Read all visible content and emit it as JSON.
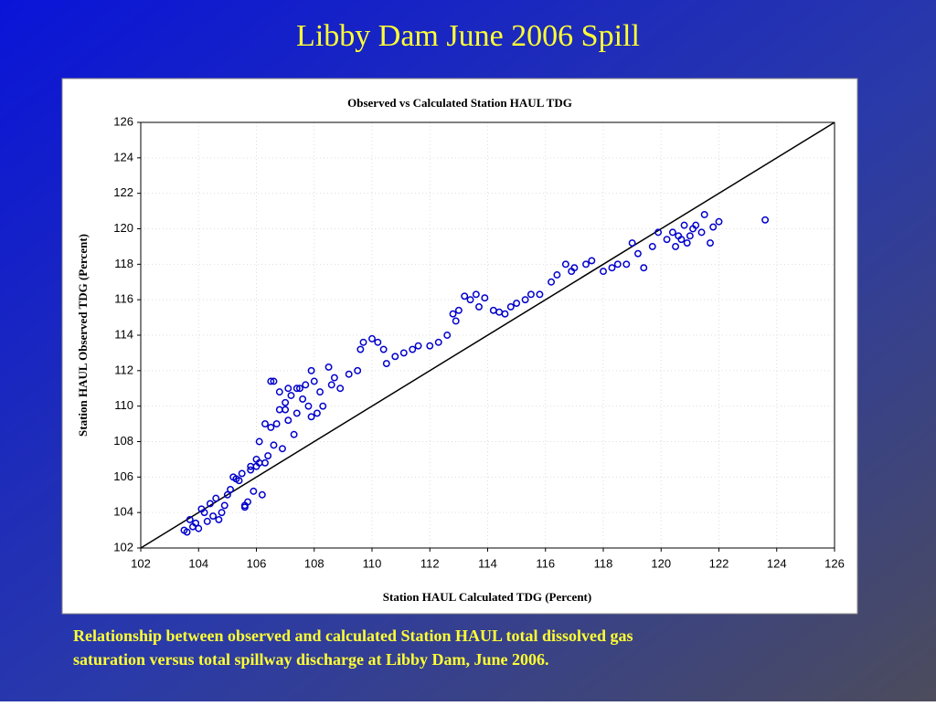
{
  "slide": {
    "title": "Libby Dam June 2006 Spill",
    "caption": [
      "Relationship between observed and calculated Station HAUL total dissolved gas",
      "saturation versus total spillway discharge at Libby Dam, June 2006."
    ]
  },
  "chart_data": {
    "type": "scatter",
    "title": "Observed vs Calculated Station HAUL TDG",
    "xlabel": "Station HAUL Calculated TDG (Percent)",
    "ylabel": "Station HAUL Observed TDG (Percent)",
    "xlim": [
      102,
      126
    ],
    "ylim": [
      102,
      126
    ],
    "xticks": [
      102,
      104,
      106,
      108,
      110,
      112,
      114,
      116,
      118,
      120,
      122,
      124,
      126
    ],
    "yticks": [
      102,
      104,
      106,
      108,
      110,
      112,
      114,
      116,
      118,
      120,
      122,
      124,
      126
    ],
    "grid": true,
    "series": [
      {
        "color": "#0000cc",
        "x": [
          103.5,
          103.6,
          103.8,
          103.9,
          104.0,
          104.1,
          104.3,
          104.4,
          104.5,
          104.6,
          104.7,
          104.8,
          104.9,
          105.0,
          105.1,
          105.2,
          105.4,
          105.5,
          105.6,
          105.7,
          105.8,
          105.9,
          106.0,
          106.1,
          106.2,
          106.3,
          106.4,
          106.5,
          106.6,
          106.7,
          106.8,
          106.9,
          107.0,
          107.1,
          107.2,
          107.3,
          107.4,
          107.5,
          107.6,
          107.7,
          107.8,
          107.9,
          108.0,
          108.1,
          108.3,
          108.5,
          108.7,
          108.9,
          109.2,
          109.5,
          109.6,
          109.7,
          110.0,
          110.2,
          110.4,
          110.5,
          110.8,
          111.1,
          111.4,
          111.6,
          112.0,
          112.3,
          112.6,
          112.8,
          112.9,
          113.0,
          113.2,
          113.4,
          113.6,
          113.7,
          113.9,
          114.2,
          114.4,
          114.6,
          114.8,
          115.0,
          115.3,
          115.5,
          115.8,
          116.2,
          116.4,
          116.7,
          117.0,
          117.4,
          117.6,
          118.0,
          118.3,
          118.5,
          118.8,
          119.0,
          119.2,
          119.4,
          119.7,
          119.9,
          120.2,
          120.4,
          120.5,
          120.6,
          120.8,
          120.9,
          121.0,
          121.2,
          121.4,
          121.5,
          121.7,
          121.8,
          122.0,
          123.6,
          105.6,
          105.8,
          106.1,
          106.3,
          106.6,
          106.8,
          107.1,
          107.4,
          107.9,
          108.2,
          108.6,
          103.7,
          104.2,
          105.3,
          106.0,
          106.5,
          107.0,
          120.7,
          121.1,
          116.9
        ],
        "values": [
          103.0,
          102.9,
          103.2,
          103.4,
          103.1,
          104.2,
          103.5,
          104.5,
          103.8,
          104.8,
          103.6,
          104.0,
          104.4,
          105.0,
          105.3,
          106.0,
          105.8,
          106.2,
          104.4,
          104.6,
          106.4,
          105.2,
          106.6,
          108.0,
          105.0,
          106.8,
          107.2,
          111.4,
          111.4,
          109.0,
          109.8,
          107.6,
          110.2,
          111.0,
          110.6,
          108.4,
          109.6,
          111.0,
          110.4,
          111.2,
          110.0,
          112.0,
          111.4,
          109.6,
          110.0,
          112.2,
          111.6,
          111.0,
          111.8,
          112.0,
          113.2,
          113.6,
          113.8,
          113.6,
          113.2,
          112.4,
          112.8,
          113.0,
          113.2,
          113.4,
          113.4,
          113.6,
          114.0,
          115.2,
          114.8,
          115.4,
          116.2,
          116.0,
          116.3,
          115.6,
          116.1,
          115.4,
          115.3,
          115.2,
          115.6,
          115.8,
          116.0,
          116.3,
          116.3,
          117.0,
          117.4,
          118.0,
          117.8,
          118.0,
          118.2,
          117.6,
          117.8,
          118.0,
          118.0,
          119.2,
          118.6,
          117.8,
          119.0,
          119.8,
          119.4,
          119.8,
          119.0,
          119.6,
          120.2,
          119.2,
          119.6,
          120.2,
          119.8,
          120.8,
          119.2,
          120.1,
          120.4,
          120.5,
          104.3,
          106.6,
          106.8,
          109.0,
          107.8,
          110.8,
          109.2,
          111.0,
          109.4,
          110.8,
          111.2,
          103.6,
          104.0,
          105.9,
          107.0,
          108.8,
          109.8,
          119.4,
          120.0,
          117.6
        ]
      }
    ]
  }
}
